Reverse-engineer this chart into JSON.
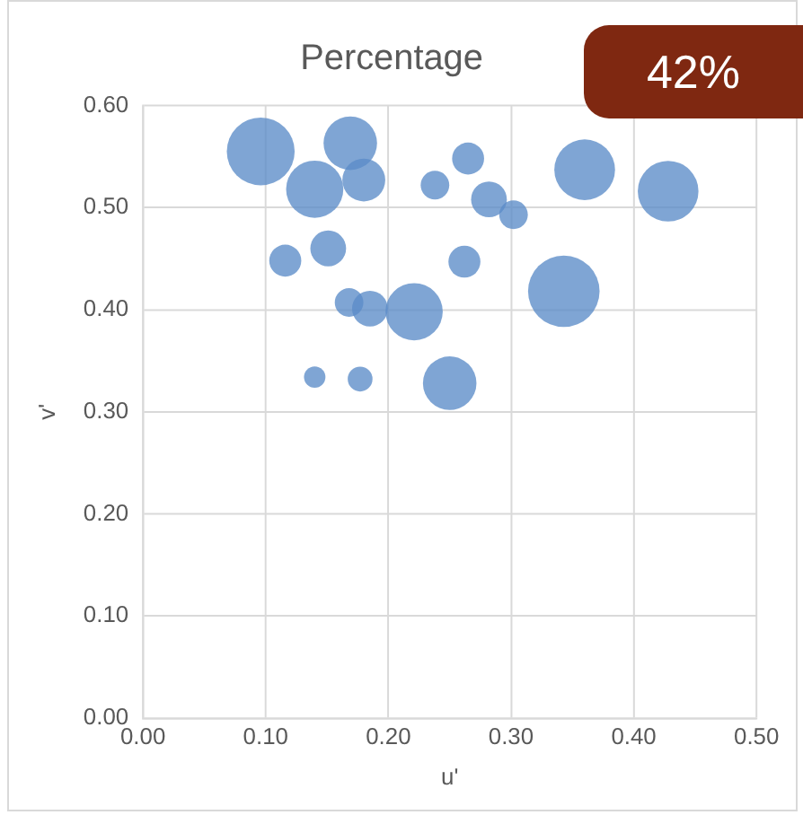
{
  "chart_data": {
    "type": "bubble",
    "title": "Percentage",
    "xlabel": "u'",
    "ylabel": "v'",
    "annotations": [
      "42%"
    ],
    "x": [
      0.096,
      0.169,
      0.14,
      0.18,
      0.238,
      0.265,
      0.282,
      0.302,
      0.36,
      0.428,
      0.116,
      0.151,
      0.262,
      0.168,
      0.185,
      0.221,
      0.343,
      0.14,
      0.177,
      0.25
    ],
    "series": [
      {
        "color": "#5b8cc8",
        "values": [
          0.555,
          0.563,
          0.518,
          0.527,
          0.522,
          0.548,
          0.508,
          0.493,
          0.537,
          0.516,
          0.448,
          0.46,
          0.447,
          0.407,
          0.401,
          0.398,
          0.418,
          0.334,
          0.332,
          0.328
        ],
        "sizes": [
          0.9,
          0.56,
          0.64,
          0.36,
          0.16,
          0.2,
          0.25,
          0.16,
          0.72,
          0.72,
          0.2,
          0.25,
          0.2,
          0.16,
          0.25,
          0.64,
          1,
          0.09,
          0.12,
          0.56
        ]
      }
    ],
    "xlim": [
      0,
      0.5
    ],
    "xticks": [
      {
        "value": 0,
        "label": "0.00"
      },
      {
        "value": 0.1,
        "label": "0.10"
      },
      {
        "value": 0.2,
        "label": "0.20"
      },
      {
        "value": 0.3,
        "label": "0.30"
      },
      {
        "value": 0.4,
        "label": "0.40"
      },
      {
        "value": 0.5,
        "label": "0.50"
      }
    ],
    "ylim": [
      0,
      0.6
    ],
    "yticks": [
      {
        "value": 0,
        "label": "0.00"
      },
      {
        "value": 0.1,
        "label": "0.10"
      },
      {
        "value": 0.2,
        "label": "0.20"
      },
      {
        "value": 0.3,
        "label": "0.30"
      },
      {
        "value": 0.4,
        "label": "0.40"
      },
      {
        "value": 0.5,
        "label": "0.50"
      },
      {
        "value": 0.6,
        "label": "0.60"
      }
    ],
    "grid": true
  }
}
